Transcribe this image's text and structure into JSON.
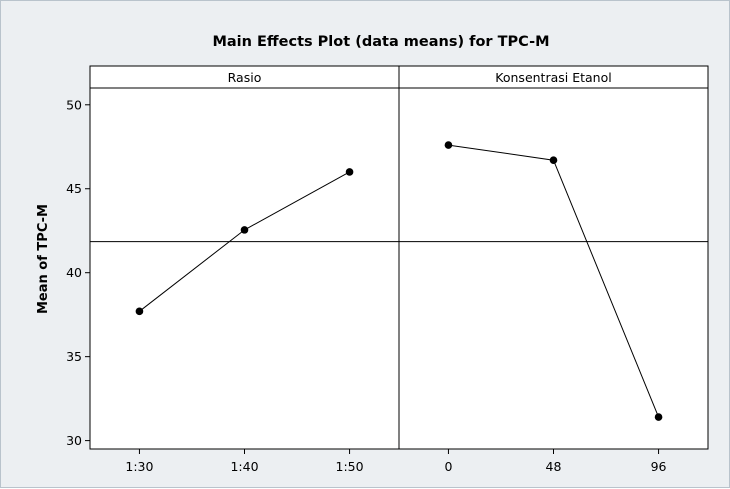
{
  "chart_data": {
    "type": "line",
    "title": "Main Effects Plot (data means) for TPC-M",
    "ylabel": "Mean of TPC-M",
    "ylim": [
      29.5,
      51
    ],
    "yticks": [
      30,
      35,
      40,
      45,
      50
    ],
    "reference_line": 41.85,
    "grid": false,
    "panels": [
      {
        "name": "Rasio",
        "categories": [
          "1:30",
          "1:40",
          "1:50"
        ],
        "values": [
          37.7,
          42.55,
          46.0
        ]
      },
      {
        "name": "Konsentrasi Etanol",
        "categories": [
          "0",
          "48",
          "96"
        ],
        "values": [
          47.6,
          46.7,
          31.4
        ]
      }
    ],
    "colors": {
      "line": "#000000",
      "marker": "#000000",
      "background": "#eceff2",
      "plot": "#ffffff"
    }
  }
}
